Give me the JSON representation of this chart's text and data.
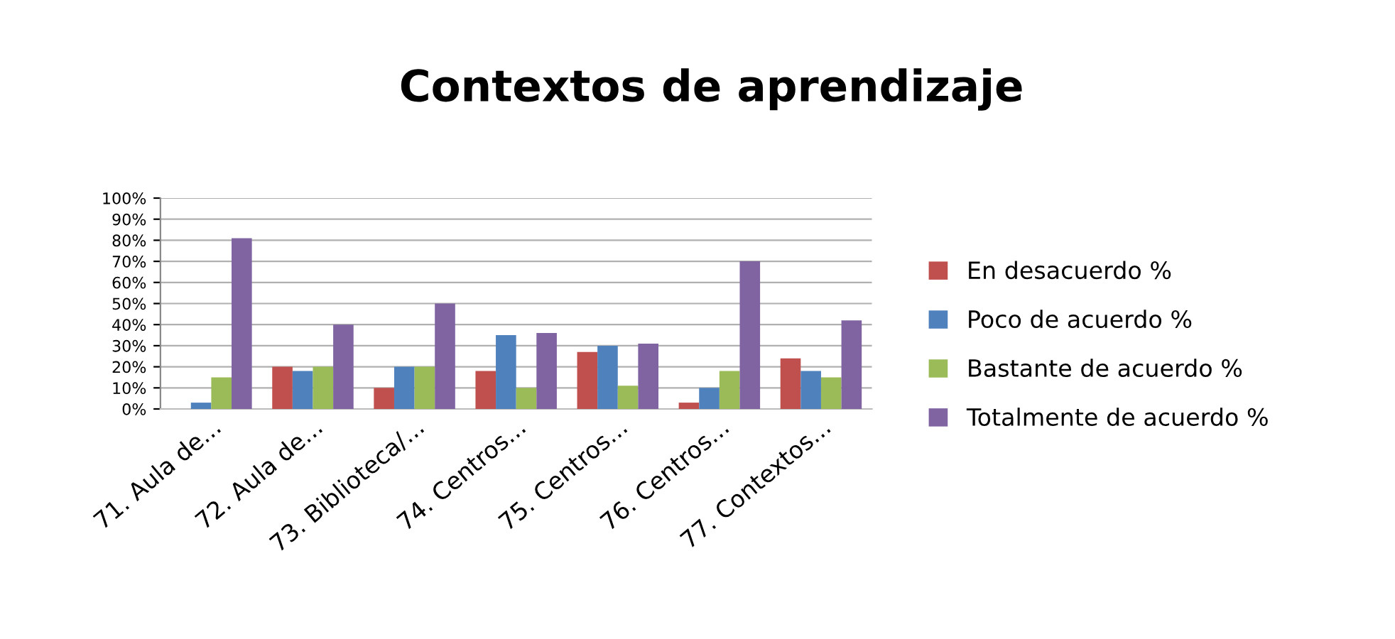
{
  "chart_data": {
    "type": "bar",
    "title": "Contextos de aprendizaje",
    "categories": [
      "71. Aula de...",
      "72. Aula de...",
      "73. Biblioteca/...",
      "74. Centros...",
      "75. Centros...",
      "76. Centros...",
      "77. Contextos..."
    ],
    "series": [
      {
        "name": "En desacuerdo %",
        "color": "#c0504d",
        "values": [
          0,
          20,
          10,
          18,
          27,
          3,
          24
        ]
      },
      {
        "name": "Poco de acuerdo %",
        "color": "#4f81bd",
        "values": [
          3,
          18,
          20,
          35,
          30,
          10,
          18
        ]
      },
      {
        "name": "Bastante de acuerdo %",
        "color": "#9bbb59",
        "values": [
          15,
          20,
          20,
          10,
          11,
          18,
          15
        ]
      },
      {
        "name": "Totalmente de acuerdo %",
        "color": "#8064a2",
        "values": [
          81,
          40,
          50,
          36,
          31,
          70,
          42
        ]
      }
    ],
    "ylim": [
      0,
      100
    ],
    "yticks": [
      {
        "value": 0,
        "label": "0%"
      },
      {
        "value": 10,
        "label": "10%"
      },
      {
        "value": 20,
        "label": "20%"
      },
      {
        "value": 30,
        "label": "30%"
      },
      {
        "value": 40,
        "label": "40%"
      },
      {
        "value": 50,
        "label": "50%"
      },
      {
        "value": 60,
        "label": "60%"
      },
      {
        "value": 70,
        "label": "70%"
      },
      {
        "value": 80,
        "label": "80%"
      },
      {
        "value": 90,
        "label": "90%"
      },
      {
        "value": 100,
        "label": "100%"
      }
    ],
    "grid": "y",
    "legend": "right"
  }
}
